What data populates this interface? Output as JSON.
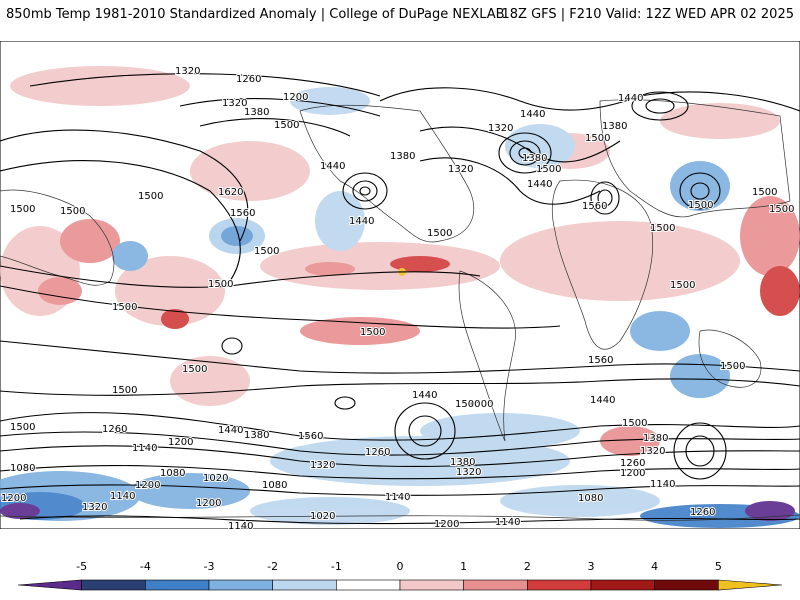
{
  "header": {
    "title": "850mb Temp 1981-2010 Standardized Anomaly | College of DuPage NEXLAB",
    "run_info": "18Z GFS | F210 Valid: 12Z WED APR 02 2025"
  },
  "colorbar": {
    "ticks": [
      "-5",
      "-4",
      "-3",
      "-2",
      "-1",
      "0",
      "1",
      "2",
      "3",
      "4",
      "5"
    ],
    "colors": [
      "#5a2a8c",
      "#2c3f73",
      "#3f7fc8",
      "#7fb0e0",
      "#bcd6ee",
      "#ffffff",
      "#f2c8c8",
      "#e89090",
      "#d23c3c",
      "#a01818",
      "#6e0a0a",
      "#f0c020"
    ]
  },
  "contour_labels": [
    "1320",
    "1260",
    "1200",
    "1320",
    "1380",
    "1500",
    "1440",
    "1380",
    "1320",
    "1380",
    "1440",
    "1320",
    "1380",
    "1500",
    "1440",
    "1500",
    "1500",
    "1620",
    "1500",
    "1560",
    "1500",
    "1440",
    "1500",
    "1560",
    "1440",
    "1500",
    "1500",
    "1500",
    "1500",
    "1500",
    "1500",
    "1500",
    "1500",
    "1500",
    "1500",
    "1500",
    "1500",
    "1560",
    "1500",
    "1440",
    "1500",
    "1440",
    "1500",
    "1380",
    "1320",
    "1500",
    "1260",
    "1200",
    "1140",
    "1440",
    "1380",
    "1560",
    "1320",
    "1260",
    "1380",
    "1320",
    "1200",
    "1260",
    "1200",
    "1140",
    "1080",
    "1080",
    "1200",
    "1020",
    "1080",
    "1200",
    "1140",
    "1140",
    "1080",
    "1020",
    "1140",
    "1200",
    "1140",
    "1260",
    "1320"
  ]
}
